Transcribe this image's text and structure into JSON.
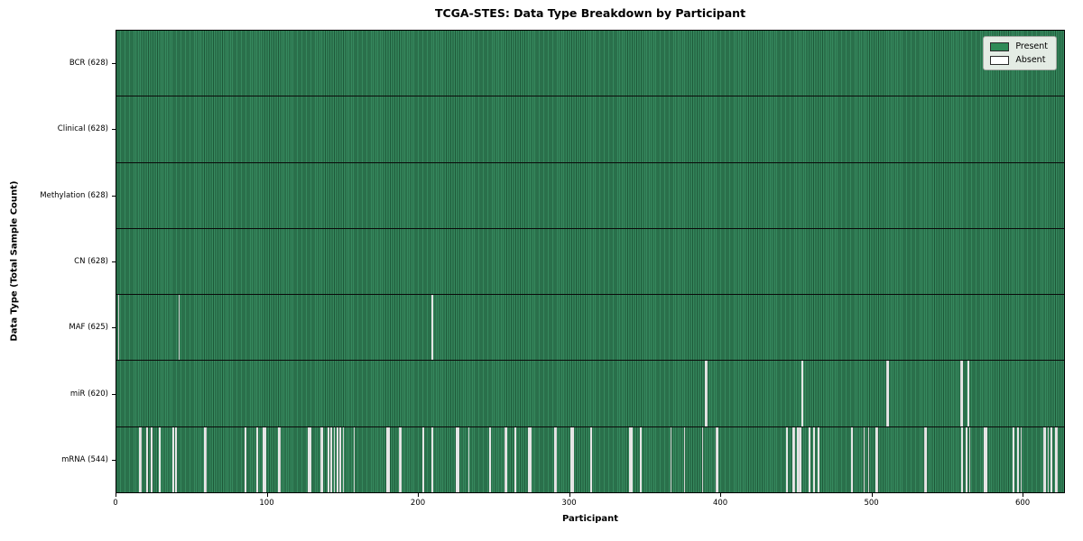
{
  "title": "TCGA-STES: Data Type Breakdown by Participant",
  "chart_data": {
    "type": "heatmap",
    "title": "TCGA-STES: Data Type Breakdown by Participant",
    "xlabel": "Participant",
    "ylabel": "Data Type (Total Sample Count)",
    "xlim": [
      0,
      628
    ],
    "x_ticks": [
      0,
      100,
      200,
      300,
      400,
      500,
      600
    ],
    "grid": false,
    "legend_position": "upper right",
    "legend": [
      {
        "label": "Present",
        "color": "#2e8b57"
      },
      {
        "label": "Absent",
        "color": "#ffffff"
      }
    ],
    "cell_edge_color": "#1d5838",
    "row_separator_color": "#0a0a0a",
    "rows": [
      {
        "label": "BCR (628)",
        "name": "bcr",
        "present_count": 628,
        "absent_participants": []
      },
      {
        "label": "Clinical (628)",
        "name": "clinical",
        "present_count": 628,
        "absent_participants": []
      },
      {
        "label": "Methylation (628)",
        "name": "methylation",
        "present_count": 628,
        "absent_participants": []
      },
      {
        "label": "CN (628)",
        "name": "cn",
        "present_count": 628,
        "absent_participants": []
      },
      {
        "label": "MAF (625)",
        "name": "maf",
        "present_count": 625,
        "absent_participants": [
          1,
          41,
          209
        ]
      },
      {
        "label": "miR (620)",
        "name": "mir",
        "present_count": 620,
        "absent_participants": [
          390,
          391,
          454,
          510,
          511,
          559,
          560,
          564
        ]
      },
      {
        "label": "mRNA (544)",
        "name": "mrna",
        "present_count": 544,
        "absent_participants": [
          15,
          16,
          20,
          23,
          28,
          37,
          39,
          58,
          59,
          85,
          93,
          97,
          98,
          107,
          108,
          127,
          128,
          135,
          136,
          140,
          142,
          144,
          146,
          148,
          150,
          157,
          179,
          180,
          187,
          188,
          203,
          209,
          225,
          226,
          233,
          247,
          257,
          258,
          264,
          273,
          274,
          290,
          291,
          301,
          302,
          314,
          340,
          341,
          347,
          367,
          376,
          388,
          397,
          398,
          444,
          448,
          449,
          451,
          452,
          453,
          459,
          462,
          465,
          487,
          495,
          498,
          503,
          504,
          535,
          536,
          560,
          563,
          565,
          575,
          576,
          594,
          597,
          599,
          614,
          615,
          617,
          619,
          622,
          623
        ]
      }
    ]
  }
}
